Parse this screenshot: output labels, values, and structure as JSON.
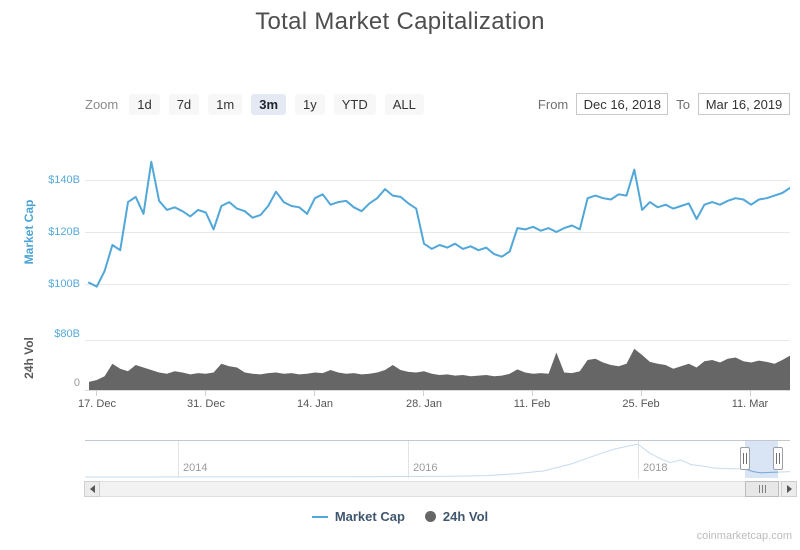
{
  "title": "Total Market Capitalization",
  "toolbar": {
    "zoom_label": "Zoom",
    "buttons": [
      "1d",
      "7d",
      "1m",
      "3m",
      "1y",
      "YTD",
      "ALL"
    ],
    "selected": "3m",
    "from_label": "From",
    "from_value": "Dec 16, 2018",
    "to_label": "To",
    "to_value": "Mar 16, 2019"
  },
  "chart_data": [
    {
      "type": "line",
      "name": "Market Cap",
      "color": "#51a7d8",
      "unit": "USD billions",
      "x_start": "Dec 16, 2018",
      "x_end": "Mar 16, 2019",
      "x_unit": "day",
      "x_labels": [
        "17. Dec",
        "31. Dec",
        "14. Jan",
        "28. Jan",
        "11. Feb",
        "25. Feb",
        "11. Mar"
      ],
      "ylabel": "Market Cap",
      "yticks": [
        "$100B",
        "$120B",
        "$140B"
      ],
      "ylim": [
        95,
        151
      ],
      "grid": true,
      "values": [
        100.5,
        99.0,
        105.0,
        115.0,
        113.0,
        131.5,
        133.5,
        127.0,
        147.0,
        132.0,
        128.5,
        129.5,
        128.0,
        126.0,
        128.5,
        127.5,
        121.0,
        130.0,
        131.5,
        129.0,
        128.0,
        125.5,
        126.5,
        130.0,
        135.5,
        131.5,
        130.0,
        129.5,
        127.0,
        133.0,
        134.5,
        130.5,
        131.5,
        132.0,
        129.5,
        128.0,
        131.0,
        133.0,
        136.5,
        134.0,
        133.5,
        131.0,
        129.0,
        115.5,
        113.5,
        115.0,
        114.0,
        115.5,
        113.5,
        114.5,
        113.0,
        114.0,
        111.5,
        110.5,
        112.5,
        121.5,
        121.0,
        122.0,
        120.5,
        121.5,
        120.0,
        121.5,
        122.5,
        121.0,
        133.0,
        134.0,
        133.0,
        132.5,
        134.5,
        134.0,
        144.0,
        128.5,
        131.5,
        129.5,
        130.5,
        129.0,
        130.0,
        131.0,
        125.0,
        130.5,
        131.5,
        130.5,
        132.0,
        133.0,
        132.5,
        130.5,
        132.5,
        133.0,
        134.0,
        135.0,
        137.0
      ]
    },
    {
      "type": "area",
      "name": "24h Vol",
      "color": "#666666",
      "unit": "USD billions",
      "ylabel": "24h Vol",
      "yticks": [
        "0",
        "$80B"
      ],
      "ylim": [
        0,
        93
      ],
      "values": [
        13,
        16,
        22,
        42,
        34,
        30,
        40,
        36,
        32,
        28,
        26,
        30,
        28,
        25,
        27,
        26,
        28,
        42,
        38,
        36,
        28,
        26,
        25,
        27,
        28,
        26,
        27,
        25,
        26,
        28,
        27,
        32,
        28,
        26,
        27,
        25,
        26,
        28,
        32,
        40,
        32,
        29,
        28,
        30,
        26,
        24,
        25,
        23,
        24,
        22,
        23,
        24,
        22,
        23,
        26,
        33,
        28,
        26,
        27,
        26,
        60,
        28,
        27,
        30,
        48,
        50,
        44,
        40,
        38,
        42,
        66,
        56,
        45,
        42,
        40,
        34,
        38,
        42,
        36,
        46,
        48,
        44,
        50,
        52,
        46,
        44,
        47,
        45,
        42,
        48,
        55
      ]
    }
  ],
  "navigator": {
    "years": [
      "2014",
      "2016",
      "2018"
    ],
    "selected_range": [
      "Dec 16, 2018",
      "Mar 16, 2019"
    ],
    "ymax_billions": 830,
    "series": [
      [
        0,
        0.8
      ],
      [
        0.08,
        1.2
      ],
      [
        0.132,
        1.6
      ],
      [
        0.2,
        3
      ],
      [
        0.3,
        5
      ],
      [
        0.38,
        8
      ],
      [
        0.458,
        12
      ],
      [
        0.52,
        18
      ],
      [
        0.57,
        35
      ],
      [
        0.61,
        80
      ],
      [
        0.65,
        150
      ],
      [
        0.69,
        330
      ],
      [
        0.72,
        520
      ],
      [
        0.75,
        700
      ],
      [
        0.784,
        830
      ],
      [
        0.8,
        610
      ],
      [
        0.815,
        470
      ],
      [
        0.83,
        360
      ],
      [
        0.845,
        430
      ],
      [
        0.86,
        310
      ],
      [
        0.875,
        280
      ],
      [
        0.89,
        230
      ],
      [
        0.905,
        215
      ],
      [
        0.92,
        205
      ],
      [
        0.936,
        200
      ],
      [
        0.948,
        135
      ],
      [
        0.958,
        105
      ],
      [
        0.968,
        112
      ],
      [
        0.976,
        118
      ],
      [
        0.983,
        122
      ],
      [
        1,
        135
      ]
    ]
  },
  "legend": {
    "items": [
      {
        "label": "Market Cap",
        "color": "#51a7d8",
        "symbol": "line"
      },
      {
        "label": "24h Vol",
        "color": "#666666",
        "symbol": "circle"
      }
    ]
  },
  "watermark": "coinmarketcap.com",
  "colors": {
    "accent_blue": "#51a7d8",
    "axis_label_blue": "#56a9da",
    "volume_gray": "#666666",
    "legend_text": "#3e576f",
    "selected_button_bg": "#e4e9f3",
    "navigator_mask": "rgba(118,160,214,0.28)"
  }
}
